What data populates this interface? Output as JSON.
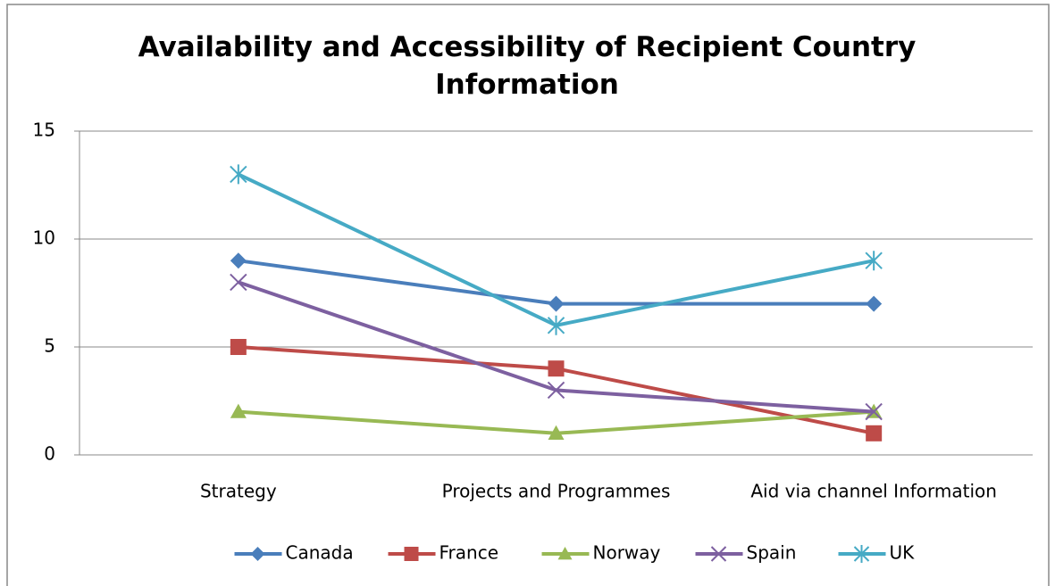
{
  "chart_data": {
    "type": "line",
    "title": "Availability and Accessibility of Recipient Country Information",
    "categories": [
      "Strategy",
      "Projects and Programmes",
      "Aid via channel Information"
    ],
    "series": [
      {
        "name": "Canada",
        "color": "#4a7ebb",
        "marker": "diamond",
        "values": [
          9,
          7,
          7
        ]
      },
      {
        "name": "France",
        "color": "#be4b48",
        "marker": "square",
        "values": [
          5,
          4,
          1
        ]
      },
      {
        "name": "Norway",
        "color": "#98b954",
        "marker": "triangle",
        "values": [
          2,
          1,
          2
        ]
      },
      {
        "name": "Spain",
        "color": "#7d60a0",
        "marker": "x",
        "values": [
          8,
          3,
          2
        ]
      },
      {
        "name": "UK",
        "color": "#46aac5",
        "marker": "star",
        "values": [
          13,
          6,
          9
        ]
      }
    ],
    "ylim": [
      0,
      15
    ],
    "yticks": [
      0,
      5,
      10,
      15
    ],
    "grid": true,
    "legend": "bottom"
  }
}
